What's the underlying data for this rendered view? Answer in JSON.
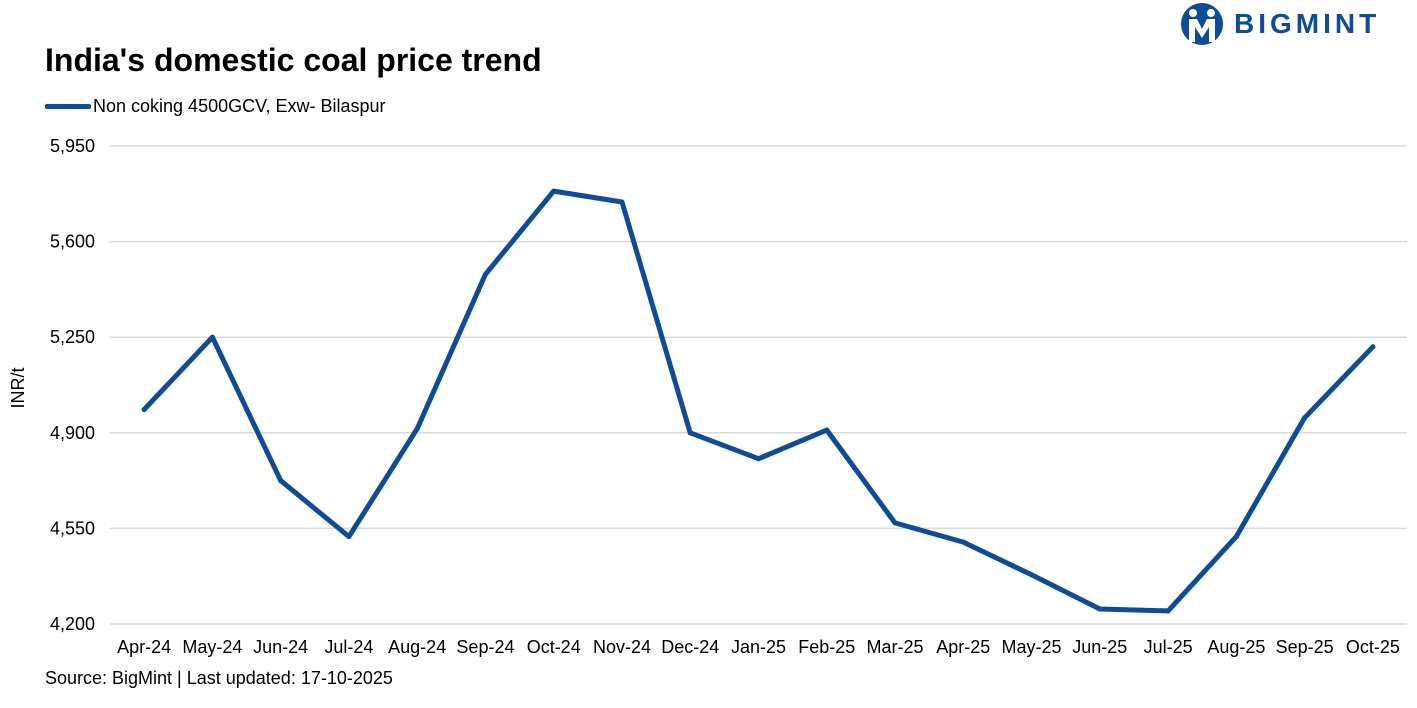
{
  "brand": {
    "name": "BIGMINT",
    "color": "#0F4C97"
  },
  "source": "Source: BigMint | Last updated: 17-10-2025",
  "chart_data": {
    "type": "line",
    "title": "India's domestic coal price trend",
    "xlabel": "",
    "ylabel": "INR/t",
    "ylim": [
      4200,
      5950
    ],
    "yticks": [
      4200,
      4550,
      4900,
      5250,
      5600,
      5950
    ],
    "ytick_labels": [
      "4,200",
      "4,550",
      "4,900",
      "5,250",
      "5,600",
      "5,950"
    ],
    "grid": true,
    "legend_position": "top-left",
    "categories": [
      "Apr-24",
      "May-24",
      "Jun-24",
      "Jul-24",
      "Aug-24",
      "Sep-24",
      "Oct-24",
      "Nov-24",
      "Dec-24",
      "Jan-25",
      "Feb-25",
      "Mar-25",
      "Apr-25",
      "May-25",
      "Jun-25",
      "Jul-25",
      "Aug-25",
      "Sep-25",
      "Oct-25"
    ],
    "series": [
      {
        "name": "Non coking 4500GCV, Exw- Bilaspur",
        "color": "#0F4C97",
        "values": [
          4985,
          5250,
          4725,
          4520,
          4915,
          5480,
          5785,
          5745,
          4900,
          4805,
          4910,
          4570,
          4500,
          4380,
          4255,
          4248,
          4520,
          4955,
          5215
        ]
      }
    ]
  }
}
